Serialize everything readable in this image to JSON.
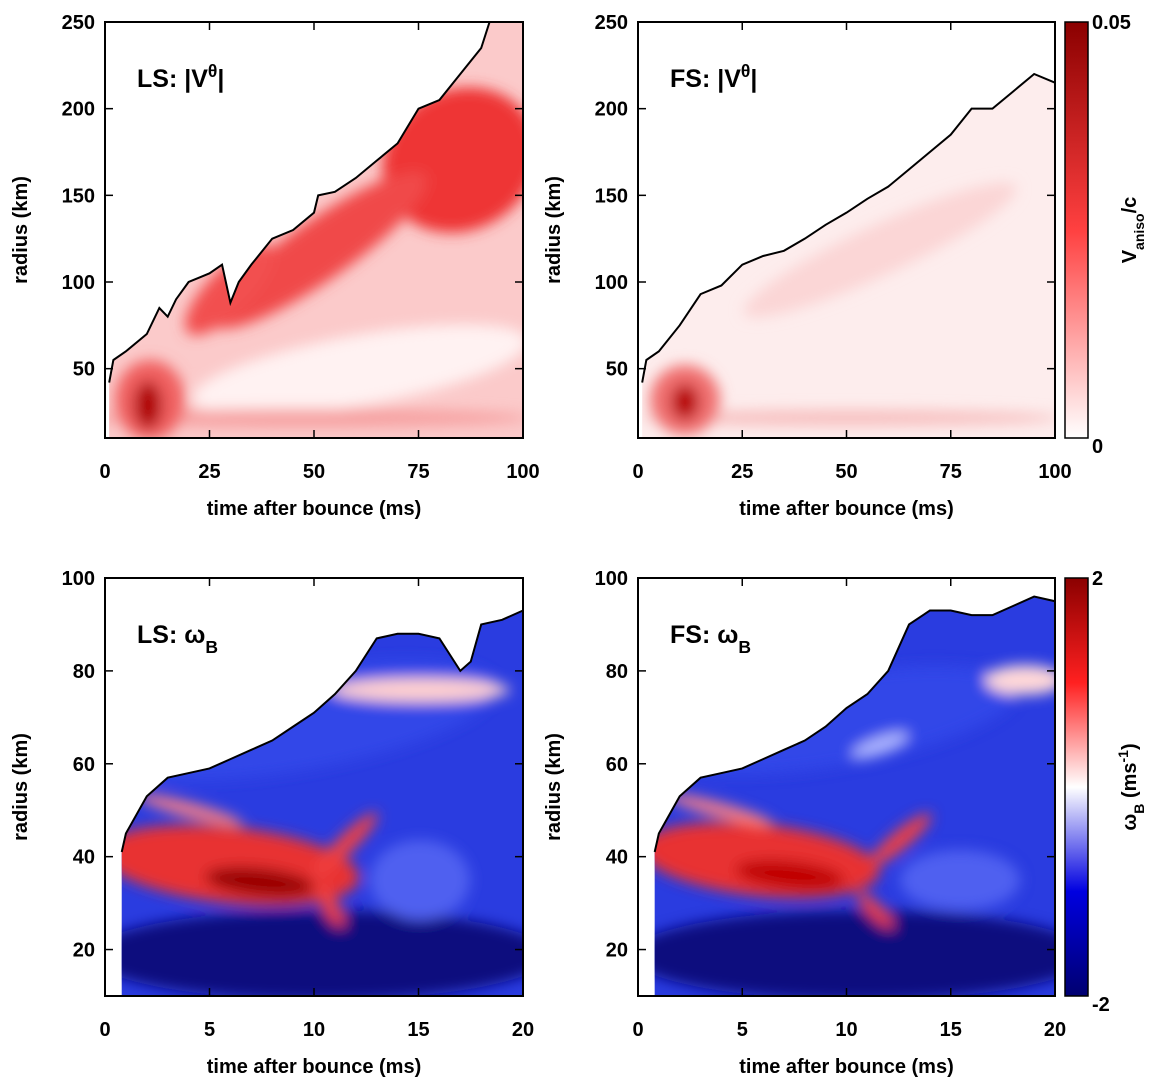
{
  "chart_data": [
    {
      "type": "heatmap",
      "title": [
        {
          "t": "LS: |V"
        },
        {
          "sup": "θ"
        },
        {
          "t": "|"
        }
      ],
      "xlabel": "time after bounce (ms)",
      "ylabel": "radius (km)",
      "xlim": [
        0,
        100
      ],
      "xticks": [
        0,
        25,
        50,
        75,
        100
      ],
      "ylim": [
        10,
        250
      ],
      "yticks": [
        50,
        100,
        150,
        200,
        250
      ],
      "color": "#000000",
      "x": [
        1,
        2,
        5,
        10,
        13,
        15,
        17,
        20,
        23,
        25,
        28,
        30,
        32,
        35,
        40,
        45,
        50,
        51,
        55,
        60,
        65,
        70,
        75,
        80,
        85,
        90,
        92,
        95,
        100
      ],
      "values": [
        42,
        55,
        60,
        70,
        85,
        80,
        90,
        100,
        103,
        105,
        110,
        88,
        100,
        110,
        125,
        130,
        140,
        150,
        152,
        160,
        170,
        180,
        200,
        205,
        220,
        235,
        250,
        250,
        250
      ]
    },
    {
      "type": "heatmap",
      "title": [
        {
          "t": "FS: |V"
        },
        {
          "sup": "θ"
        },
        {
          "t": "|"
        }
      ],
      "xlabel": "time after bounce (ms)",
      "ylabel": "radius (km)",
      "xlim": [
        0,
        100
      ],
      "xticks": [
        0,
        25,
        50,
        75,
        100
      ],
      "ylim": [
        10,
        250
      ],
      "yticks": [
        50,
        100,
        150,
        200,
        250
      ],
      "color": "#000000",
      "x": [
        1,
        2,
        5,
        10,
        15,
        20,
        25,
        30,
        35,
        40,
        45,
        50,
        55,
        60,
        65,
        70,
        75,
        80,
        85,
        90,
        95,
        100
      ],
      "values": [
        42,
        55,
        60,
        75,
        93,
        98,
        110,
        115,
        118,
        125,
        133,
        140,
        148,
        155,
        165,
        175,
        185,
        200,
        200,
        210,
        220,
        215
      ],
      "colorbar": {
        "label": [
          {
            "t": "V"
          },
          {
            "sub": "aniso"
          },
          {
            "t": "/c"
          }
        ],
        "lim": [
          0,
          0.05
        ],
        "ticks": [
          0,
          0.05
        ],
        "colors": [
          "#ffffff",
          "#ff4040",
          "#8b0000"
        ]
      }
    },
    {
      "type": "heatmap",
      "title": [
        {
          "t": "LS: ω"
        },
        {
          "sub": "B"
        }
      ],
      "xlabel": "time after bounce (ms)",
      "ylabel": "radius (km)",
      "xlim": [
        0,
        20
      ],
      "xticks": [
        0,
        5,
        10,
        15,
        20
      ],
      "ylim": [
        10,
        100
      ],
      "yticks": [
        20,
        40,
        60,
        80,
        100
      ],
      "color": "#000000",
      "x": [
        0.8,
        1,
        2,
        3,
        4,
        5,
        6,
        7,
        8,
        9,
        10,
        11,
        12,
        13,
        14,
        15,
        16,
        17,
        17.5,
        18,
        19,
        20
      ],
      "values": [
        41,
        45,
        53,
        57,
        58,
        59,
        61,
        63,
        65,
        68,
        71,
        75,
        80,
        87,
        88,
        88,
        87,
        80,
        82,
        90,
        91,
        93
      ]
    },
    {
      "type": "heatmap",
      "title": [
        {
          "t": "FS: ω"
        },
        {
          "sub": "B"
        }
      ],
      "xlabel": "time after bounce (ms)",
      "ylabel": "radius (km)",
      "xlim": [
        0,
        20
      ],
      "xticks": [
        0,
        5,
        10,
        15,
        20
      ],
      "ylim": [
        10,
        100
      ],
      "yticks": [
        20,
        40,
        60,
        80,
        100
      ],
      "color": "#000000",
      "x": [
        0.8,
        1,
        2,
        3,
        4,
        5,
        6,
        7,
        8,
        9,
        10,
        11,
        12,
        13,
        14,
        15,
        16,
        17,
        18,
        19,
        20
      ],
      "values": [
        41,
        45,
        53,
        57,
        58,
        59,
        61,
        63,
        65,
        68,
        72,
        75,
        80,
        90,
        93,
        93,
        92,
        92,
        94,
        96,
        95
      ],
      "colorbar": {
        "label": [
          {
            "t": "ω"
          },
          {
            "sub": "B"
          },
          {
            "t": " (ms"
          },
          {
            "sup": "-1"
          },
          {
            "t": ")"
          }
        ],
        "lim": [
          -2,
          2
        ],
        "ticks": [
          -2,
          2
        ],
        "colors": [
          "#000070",
          "#0000e0",
          "#ffffff",
          "#ff2020",
          "#8b0000"
        ]
      }
    }
  ]
}
